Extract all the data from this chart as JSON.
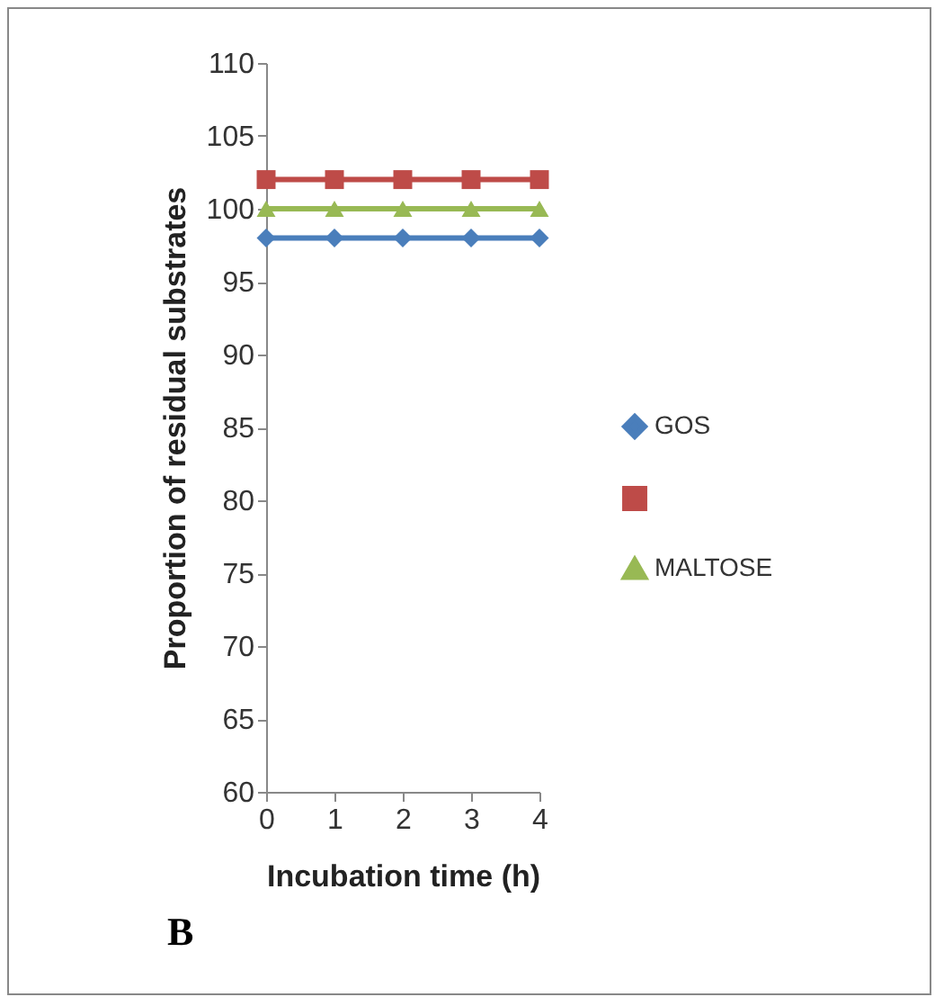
{
  "chart_data": {
    "type": "line",
    "xlabel": "Incubation time (h)",
    "ylabel": "Proportion of residual substrates",
    "x": [
      0,
      1,
      2,
      3,
      4
    ],
    "series": [
      {
        "name": "GOS",
        "color": "#4a7ebb",
        "marker": "diamond",
        "values": [
          98,
          98,
          98,
          98,
          98
        ]
      },
      {
        "color": "#be4b48",
        "marker": "square",
        "values": [
          102,
          102,
          102,
          102,
          102
        ]
      },
      {
        "name": "MALTOSE",
        "color": "#98b954",
        "marker": "triangle",
        "values": [
          100,
          100,
          100,
          100,
          100
        ]
      }
    ],
    "xlim": [
      0,
      4
    ],
    "xticks": [
      0,
      1,
      2,
      3,
      4
    ],
    "ylim": [
      60,
      110
    ],
    "yticks": [
      60,
      65,
      70,
      75,
      80,
      85,
      90,
      95,
      100,
      105,
      110
    ],
    "grid": false,
    "legend": "right",
    "annotations": [
      "B"
    ]
  }
}
